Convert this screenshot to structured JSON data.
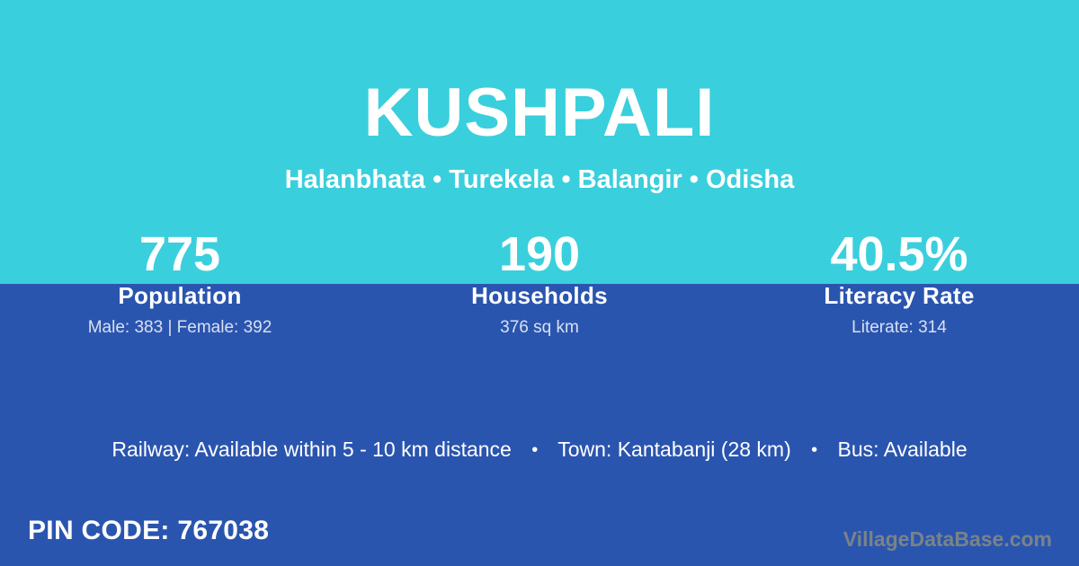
{
  "header": {
    "title": "KUSHPALI",
    "subtitle": "Halanbhata • Turekela • Balangir • Odisha"
  },
  "stats": [
    {
      "value": "775",
      "label": "Population",
      "detail": "Male: 383 | Female: 392"
    },
    {
      "value": "190",
      "label": "Households",
      "detail": "376 sq km"
    },
    {
      "value": "40.5%",
      "label": "Literacy Rate",
      "detail": "Literate: 314"
    }
  ],
  "info_bar": {
    "railway": "Railway: Available within 5 - 10 km distance",
    "town": "Town: Kantabanji (28 km)",
    "bus": "Bus: Available",
    "separator": "•"
  },
  "footer": {
    "pin_code": "PIN CODE: 767038",
    "watermark": "VillageDataBase.com"
  },
  "colors": {
    "top_band": "#3ACFDD",
    "bottom_band": "#2A55AF",
    "text": "#FFFFFF",
    "watermark_text": "#808884"
  }
}
